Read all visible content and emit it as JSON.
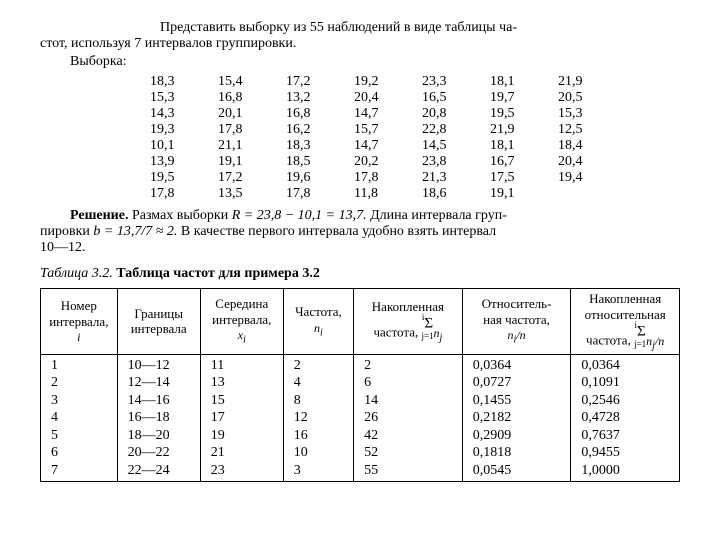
{
  "intro": {
    "line1": "Представить выборку из 55 наблюдений в виде таблицы ча-",
    "line2": "стот, используя 7 интервалов группировки.",
    "line3": "Выборка:"
  },
  "sample_rows": [
    [
      "18,3",
      "15,4",
      "17,2",
      "19,2",
      "23,3",
      "18,1",
      "21,9"
    ],
    [
      "15,3",
      "16,8",
      "13,2",
      "20,4",
      "16,5",
      "19,7",
      "20,5"
    ],
    [
      "14,3",
      "20,1",
      "16,8",
      "14,7",
      "20,8",
      "19,5",
      "15,3"
    ],
    [
      "19,3",
      "17,8",
      "16,2",
      "15,7",
      "22,8",
      "21,9",
      "12,5"
    ],
    [
      "10,1",
      "21,1",
      "18,3",
      "14,7",
      "14,5",
      "18,1",
      "18,4"
    ],
    [
      "13,9",
      "19,1",
      "18,5",
      "20,2",
      "23,8",
      "16,7",
      "20,4"
    ],
    [
      "19,5",
      "17,2",
      "19,6",
      "17,8",
      "21,3",
      "17,5",
      "19,4"
    ],
    [
      "17,8",
      "13,5",
      "17,8",
      "11,8",
      "18,6",
      "19,1",
      ""
    ]
  ],
  "solution": {
    "label": "Решение.",
    "line1_rest": "  Размах выборки ",
    "eq1": "R = 23,8 − 10,1 = 13,7.",
    "line1_after": " Длина интервала груп-",
    "line2": "пировки ",
    "eq2": "b = 13,7/7 ≈ 2.",
    "line2_after": " В качестве первого интервала удобно взять интервал",
    "line3": "10—12."
  },
  "caption": {
    "prefix": "Таблица 3.2. ",
    "title": "Таблица частот для примера 3.2"
  },
  "freq_headers": {
    "h1a": "Номер",
    "h1b": "интервала,",
    "h1c": "i",
    "h2a": "Границы",
    "h2b": "интервала",
    "h3a": "Середина",
    "h3b": "интервала,",
    "h3c": "x",
    "h3d": "i",
    "h4a": "Частота,",
    "h4b": "n",
    "h4c": "i",
    "h5a": "Накопленная",
    "h5b": "частота,",
    "h6a": "Относитель-",
    "h6b": "ная частота,",
    "h6c": "n",
    "h6d": "i",
    "h6e": "/n",
    "h7a": "Накопленная",
    "h7b": "относительная",
    "h7c": "частота,"
  },
  "sigma": {
    "top": "i",
    "sym": "Σ",
    "bottom": "j=1",
    "term1": "n",
    "sub1": "j",
    "term2": "/n"
  },
  "freq_cols": {
    "c1": [
      "1",
      "2",
      "3",
      "4",
      "5",
      "6",
      "7"
    ],
    "c2": [
      "10—12",
      "12—14",
      "14—16",
      "16—18",
      "18—20",
      "20—22",
      "22—24"
    ],
    "c3": [
      "11",
      "13",
      "15",
      "17",
      "19",
      "21",
      "23"
    ],
    "c4": [
      "2",
      "4",
      "8",
      "12",
      "16",
      "10",
      "3"
    ],
    "c5": [
      "2",
      "6",
      "14",
      "26",
      "42",
      "52",
      "55"
    ],
    "c6": [
      "0,0364",
      "0,0727",
      "0,1455",
      "0,2182",
      "0,2909",
      "0,1818",
      "0,0545"
    ],
    "c7": [
      "0,0364",
      "0,1091",
      "0,2546",
      "0,4728",
      "0,7637",
      "0,9455",
      "1,0000"
    ]
  },
  "col_widths": [
    "12%",
    "13%",
    "13%",
    "11%",
    "17%",
    "17%",
    "17%"
  ]
}
